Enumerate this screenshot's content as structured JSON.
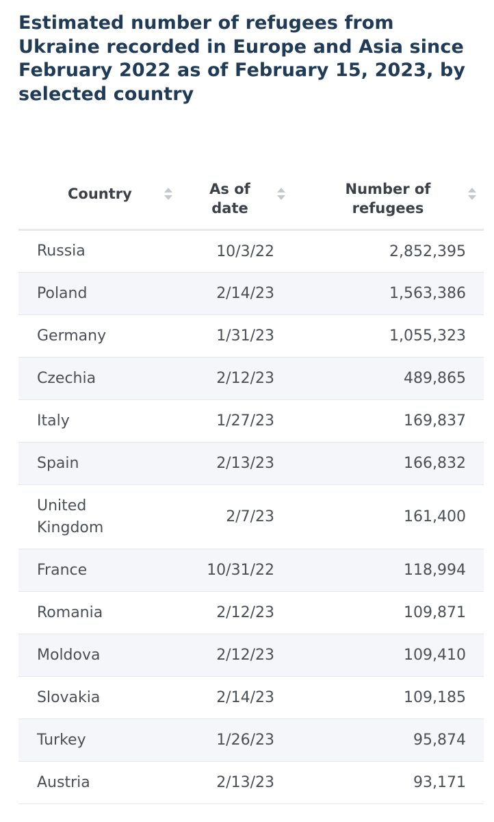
{
  "chart_data": {
    "type": "table",
    "title": "Estimated number of refugees from Ukraine recorded in Europe and Asia since February 2022 as of February 15, 2023, by selected country",
    "columns": [
      "Country",
      "As of date",
      "Number of refugees"
    ],
    "rows": [
      {
        "country": "Russia",
        "date": "10/3/22",
        "refugees": "2,852,395"
      },
      {
        "country": "Poland",
        "date": "2/14/23",
        "refugees": "1,563,386"
      },
      {
        "country": "Germany",
        "date": "1/31/23",
        "refugees": "1,055,323"
      },
      {
        "country": "Czechia",
        "date": "2/12/23",
        "refugees": "489,865"
      },
      {
        "country": "Italy",
        "date": "1/27/23",
        "refugees": "169,837"
      },
      {
        "country": "Spain",
        "date": "2/13/23",
        "refugees": "166,832"
      },
      {
        "country": "United Kingdom",
        "date": "2/7/23",
        "refugees": "161,400"
      },
      {
        "country": "France",
        "date": "10/31/22",
        "refugees": "118,994"
      },
      {
        "country": "Romania",
        "date": "2/12/23",
        "refugees": "109,871"
      },
      {
        "country": "Moldova",
        "date": "2/12/23",
        "refugees": "109,410"
      },
      {
        "country": "Slovakia",
        "date": "2/14/23",
        "refugees": "109,185"
      },
      {
        "country": "Turkey",
        "date": "1/26/23",
        "refugees": "95,874"
      },
      {
        "country": "Austria",
        "date": "2/13/23",
        "refugees": "93,171"
      }
    ]
  },
  "header": {
    "col_country": "Country",
    "col_date_line1": "As of",
    "col_date_line2": "date",
    "col_num_line1": "Number of",
    "col_num_line2": "refugees",
    "sort_icon": "sort-updown-icon"
  },
  "colors": {
    "title": "#1f3b57",
    "header_text": "#3c4147",
    "cell_text": "#4a4f55",
    "stripe": "#f4f6f9",
    "sort_icon": "#c3c8ce"
  }
}
